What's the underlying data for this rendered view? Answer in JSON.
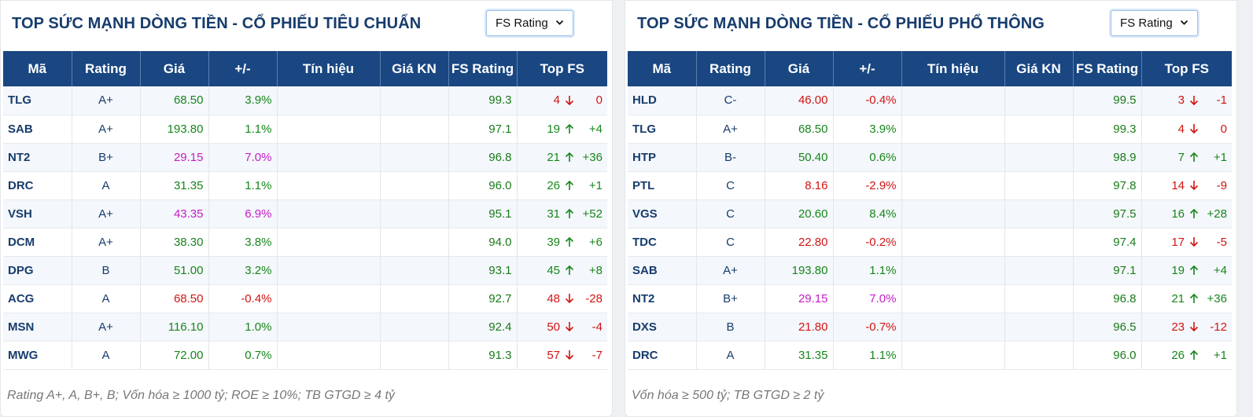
{
  "columns": [
    "Mã",
    "Rating",
    "Giá",
    "+/-",
    "Tín hiệu",
    "Giá KN",
    "FS Rating",
    "Top FS"
  ],
  "left": {
    "title": "TOP SỨC MẠNH DÒNG TIỀN - CỔ PHIẾU TIÊU CHUẨN",
    "select": "FS Rating",
    "note": "Rating A+, A, B+, B; Vốn hóa ≥ 1000 tỷ; ROE ≥ 10%; TB GTGD ≥ 4 tỷ",
    "rows": [
      {
        "code": "TLG",
        "rating": "A+",
        "price": "68.50",
        "change": "3.9%",
        "trend": "up",
        "signal": "",
        "kn": "",
        "fs": "99.3",
        "top": "4",
        "dir": "down",
        "delta": "0"
      },
      {
        "code": "SAB",
        "rating": "A+",
        "price": "193.80",
        "change": "1.1%",
        "trend": "up",
        "signal": "",
        "kn": "",
        "fs": "97.1",
        "top": "19",
        "dir": "up",
        "delta": "+4"
      },
      {
        "code": "NT2",
        "rating": "B+",
        "price": "29.15",
        "change": "7.0%",
        "trend": "ceil",
        "signal": "",
        "kn": "",
        "fs": "96.8",
        "top": "21",
        "dir": "up",
        "delta": "+36"
      },
      {
        "code": "DRC",
        "rating": "A",
        "price": "31.35",
        "change": "1.1%",
        "trend": "up",
        "signal": "",
        "kn": "",
        "fs": "96.0",
        "top": "26",
        "dir": "up",
        "delta": "+1"
      },
      {
        "code": "VSH",
        "rating": "A+",
        "price": "43.35",
        "change": "6.9%",
        "trend": "ceil",
        "signal": "",
        "kn": "",
        "fs": "95.1",
        "top": "31",
        "dir": "up",
        "delta": "+52"
      },
      {
        "code": "DCM",
        "rating": "A+",
        "price": "38.30",
        "change": "3.8%",
        "trend": "up",
        "signal": "",
        "kn": "",
        "fs": "94.0",
        "top": "39",
        "dir": "up",
        "delta": "+6"
      },
      {
        "code": "DPG",
        "rating": "B",
        "price": "51.00",
        "change": "3.2%",
        "trend": "up",
        "signal": "",
        "kn": "",
        "fs": "93.1",
        "top": "45",
        "dir": "up",
        "delta": "+8"
      },
      {
        "code": "ACG",
        "rating": "A",
        "price": "68.50",
        "change": "-0.4%",
        "trend": "down",
        "signal": "",
        "kn": "",
        "fs": "92.7",
        "top": "48",
        "dir": "down",
        "delta": "-28"
      },
      {
        "code": "MSN",
        "rating": "A+",
        "price": "116.10",
        "change": "1.0%",
        "trend": "up",
        "signal": "",
        "kn": "",
        "fs": "92.4",
        "top": "50",
        "dir": "down",
        "delta": "-4"
      },
      {
        "code": "MWG",
        "rating": "A",
        "price": "72.00",
        "change": "0.7%",
        "trend": "up",
        "signal": "",
        "kn": "",
        "fs": "91.3",
        "top": "57",
        "dir": "down",
        "delta": "-7"
      }
    ]
  },
  "right": {
    "title": "TOP SỨC MẠNH DÒNG TIỀN - CỔ PHIẾU PHỔ THÔNG",
    "select": "FS Rating",
    "note": "Vốn hóa ≥ 500 tỷ; TB GTGD ≥ 2 tỷ",
    "rows": [
      {
        "code": "HLD",
        "rating": "C-",
        "price": "46.00",
        "change": "-0.4%",
        "trend": "down",
        "signal": "",
        "kn": "",
        "fs": "99.5",
        "top": "3",
        "dir": "down",
        "delta": "-1"
      },
      {
        "code": "TLG",
        "rating": "A+",
        "price": "68.50",
        "change": "3.9%",
        "trend": "up",
        "signal": "",
        "kn": "",
        "fs": "99.3",
        "top": "4",
        "dir": "down",
        "delta": "0"
      },
      {
        "code": "HTP",
        "rating": "B-",
        "price": "50.40",
        "change": "0.6%",
        "trend": "up",
        "signal": "",
        "kn": "",
        "fs": "98.9",
        "top": "7",
        "dir": "up",
        "delta": "+1"
      },
      {
        "code": "PTL",
        "rating": "C",
        "price": "8.16",
        "change": "-2.9%",
        "trend": "down",
        "signal": "",
        "kn": "",
        "fs": "97.8",
        "top": "14",
        "dir": "down",
        "delta": "-9"
      },
      {
        "code": "VGS",
        "rating": "C",
        "price": "20.60",
        "change": "8.4%",
        "trend": "up",
        "signal": "",
        "kn": "",
        "fs": "97.5",
        "top": "16",
        "dir": "up",
        "delta": "+28"
      },
      {
        "code": "TDC",
        "rating": "C",
        "price": "22.80",
        "change": "-0.2%",
        "trend": "down",
        "signal": "",
        "kn": "",
        "fs": "97.4",
        "top": "17",
        "dir": "down",
        "delta": "-5"
      },
      {
        "code": "SAB",
        "rating": "A+",
        "price": "193.80",
        "change": "1.1%",
        "trend": "up",
        "signal": "",
        "kn": "",
        "fs": "97.1",
        "top": "19",
        "dir": "up",
        "delta": "+4"
      },
      {
        "code": "NT2",
        "rating": "B+",
        "price": "29.15",
        "change": "7.0%",
        "trend": "ceil",
        "signal": "",
        "kn": "",
        "fs": "96.8",
        "top": "21",
        "dir": "up",
        "delta": "+36"
      },
      {
        "code": "DXS",
        "rating": "B",
        "price": "21.80",
        "change": "-0.7%",
        "trend": "down",
        "signal": "",
        "kn": "",
        "fs": "96.5",
        "top": "23",
        "dir": "down",
        "delta": "-12"
      },
      {
        "code": "DRC",
        "rating": "A",
        "price": "31.35",
        "change": "1.1%",
        "trend": "up",
        "signal": "",
        "kn": "",
        "fs": "96.0",
        "top": "26",
        "dir": "up",
        "delta": "+1"
      }
    ]
  },
  "colors": {
    "header": "#1a4782",
    "title": "#173c6d",
    "up": "#17861b",
    "down": "#d21414",
    "ceiling": "#c41ec4",
    "fs_rating": "#1b7a1b"
  }
}
